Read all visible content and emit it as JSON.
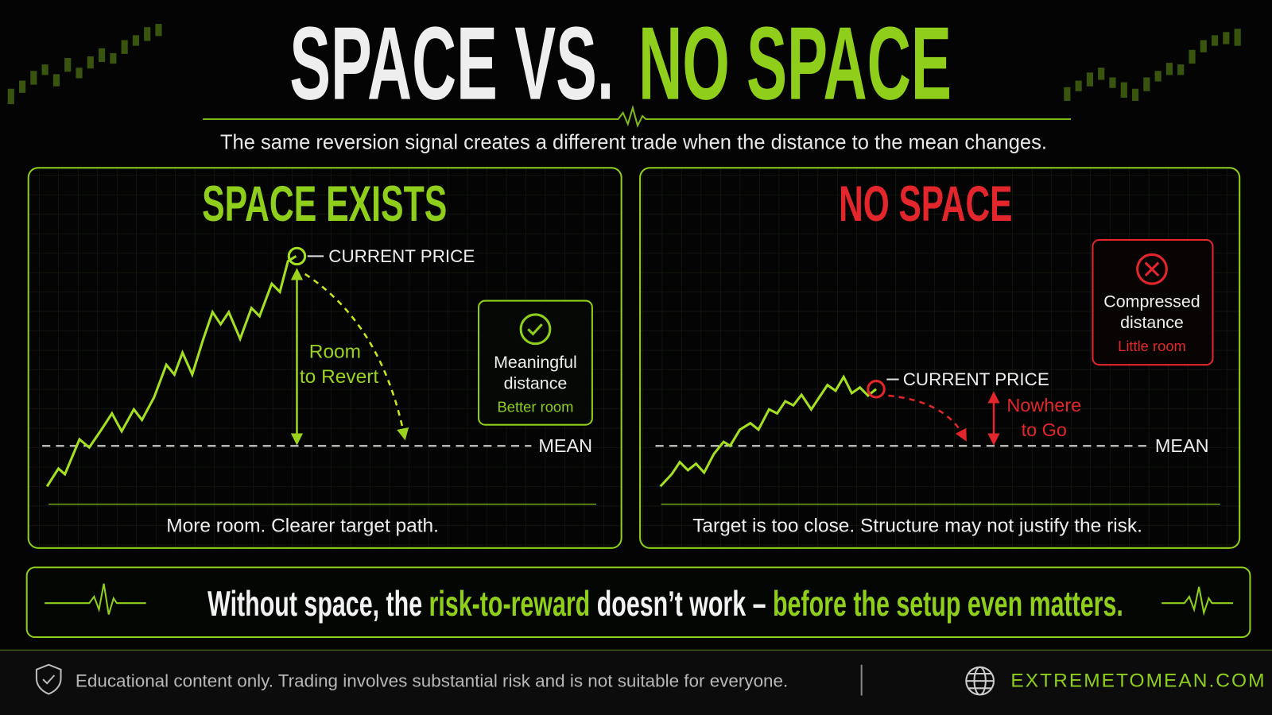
{
  "header": {
    "title_part1": "SPACE VS.",
    "title_part2": "NO SPACE",
    "subtitle": "The same reversion signal creates a different trade when the distance to the mean changes."
  },
  "panels": [
    {
      "title": "SPACE EXISTS",
      "price_label": "CURRENT PRICE",
      "arrow_label": [
        "Room",
        "to Revert"
      ],
      "mean_label": "MEAN",
      "callout": {
        "lines": [
          "Meaningful",
          "distance"
        ],
        "note": "Better room"
      },
      "caption": "More room. Clearer target path."
    },
    {
      "title": "NO SPACE",
      "price_label": "CURRENT PRICE",
      "arrow_label": [
        "Nowhere",
        "to Go"
      ],
      "mean_label": "MEAN",
      "callout": {
        "lines": [
          "Compressed",
          "distance"
        ],
        "note": "Little room"
      },
      "caption": "Target is too close. Structure may not justify the risk."
    }
  ],
  "banner": {
    "parts": [
      "Without space, the ",
      "risk-to-reward",
      " doesn’t work – ",
      "before the setup even matters."
    ]
  },
  "footer": {
    "disclaimer": "Educational content only. Trading involves substantial risk and is not suitable for everyone.",
    "website": "EXTREMETOMEAN.COM"
  }
}
